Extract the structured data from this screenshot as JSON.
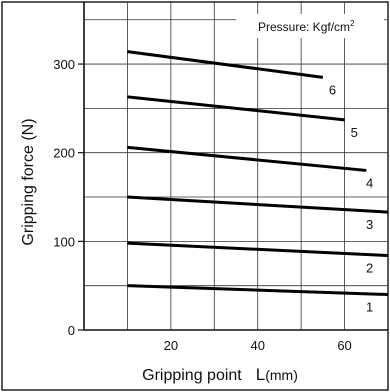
{
  "chart_data": {
    "type": "line",
    "title": "",
    "xlabel": "Gripping point",
    "xlabel_symbol": "L",
    "xlabel_unit": "(mm)",
    "ylabel": "Gripping force (N)",
    "legend_title": "Pressure: Kgf/cm",
    "legend_sup": "2",
    "xlim": [
      0,
      70
    ],
    "ylim": [
      0,
      370
    ],
    "xticks": [
      20,
      40,
      60
    ],
    "yticks": [
      0,
      100,
      200,
      300
    ],
    "grid": true,
    "series": [
      {
        "name": "1",
        "x": [
          10,
          70
        ],
        "y": [
          50,
          40
        ]
      },
      {
        "name": "2",
        "x": [
          10,
          70
        ],
        "y": [
          98,
          84
        ]
      },
      {
        "name": "3",
        "x": [
          10,
          70
        ],
        "y": [
          150,
          133
        ]
      },
      {
        "name": "4",
        "x": [
          10,
          65
        ],
        "y": [
          206,
          180
        ]
      },
      {
        "name": "5",
        "x": [
          10,
          60
        ],
        "y": [
          263,
          237
        ]
      },
      {
        "name": "6",
        "x": [
          10,
          55
        ],
        "y": [
          314,
          285
        ]
      }
    ]
  }
}
